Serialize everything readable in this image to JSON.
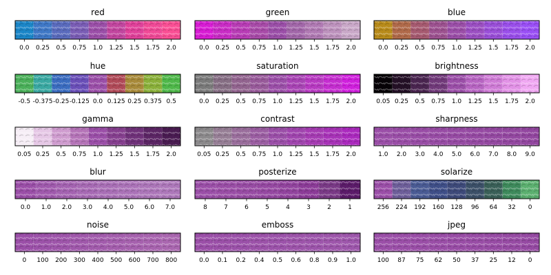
{
  "chart_data": [
    {
      "type": "heatmap",
      "title": "red",
      "tick_labels": [
        "0.0",
        "0.25",
        "0.5",
        "0.75",
        "1.0",
        "1.25",
        "1.5",
        "1.75",
        "2.0"
      ],
      "tile_colors": [
        "#1b86c8",
        "#3f78c6",
        "#5a6bbd",
        "#7a5db5",
        "#9b4fa8",
        "#c2469f",
        "#e0419a",
        "#f04a97",
        "#fa4f94"
      ]
    },
    {
      "type": "heatmap",
      "title": "green",
      "tick_labels": [
        "0.0",
        "0.25",
        "0.5",
        "0.75",
        "1.0",
        "1.25",
        "1.5",
        "1.75",
        "2.0"
      ],
      "tile_colors": [
        "#d81cd4",
        "#c92cc5",
        "#b83cb5",
        "#a84ba8",
        "#9b4fa8",
        "#a267a9",
        "#b07ab3",
        "#bd92bd",
        "#c9a8c8"
      ]
    },
    {
      "type": "heatmap",
      "title": "blue",
      "tick_labels": [
        "0.0",
        "0.25",
        "0.5",
        "0.75",
        "1.0",
        "1.25",
        "1.5",
        "1.75",
        "2.0"
      ],
      "tile_colors": [
        "#b88b1a",
        "#b06a4a",
        "#a65a70",
        "#9d5290",
        "#9b4fa8",
        "#9b4fc2",
        "#9a4fd8",
        "#9a4fea",
        "#9a4ff5"
      ]
    },
    {
      "type": "heatmap",
      "title": "hue",
      "tick_labels": [
        "-0.5",
        "-0.375",
        "-0.25",
        "-0.125",
        "0.0",
        "0.125",
        "0.25",
        "0.375",
        "0.5"
      ],
      "tile_colors": [
        "#4bb05a",
        "#3aa8a2",
        "#3b6cc0",
        "#6a4fb8",
        "#9b4fa8",
        "#b04a58",
        "#a88a3a",
        "#8ab03a",
        "#4fb84a"
      ]
    },
    {
      "type": "heatmap",
      "title": "saturation",
      "tick_labels": [
        "0.0",
        "0.25",
        "0.5",
        "0.75",
        "1.0",
        "1.25",
        "1.5",
        "1.75",
        "2.0"
      ],
      "tile_colors": [
        "#7a7a7a",
        "#866e84",
        "#92648f",
        "#985a9a",
        "#9b4fa8",
        "#a844b4",
        "#b83ac2",
        "#c52ed0",
        "#d020dd"
      ]
    },
    {
      "type": "heatmap",
      "title": "brightness",
      "tick_labels": [
        "0.05",
        "0.25",
        "0.5",
        "0.75",
        "1.0",
        "1.25",
        "1.5",
        "1.75",
        "2.0"
      ],
      "tile_colors": [
        "#070307",
        "#241026",
        "#4a2550",
        "#713a7a",
        "#9b4fa8",
        "#b765c2",
        "#cf7cd6",
        "#e292e6",
        "#f0a8f2"
      ]
    },
    {
      "type": "heatmap",
      "title": "gamma",
      "tick_labels": [
        "0.05",
        "0.25",
        "0.5",
        "0.75",
        "1.0",
        "1.25",
        "1.5",
        "1.75",
        "2.0"
      ],
      "tile_colors": [
        "#f6eef6",
        "#e6c8e6",
        "#cf9ccf",
        "#b574b8",
        "#9b4fa8",
        "#86408f",
        "#70327a",
        "#5c2665",
        "#4a1c52"
      ]
    },
    {
      "type": "heatmap",
      "title": "contrast",
      "tick_labels": [
        "0.05",
        "0.25",
        "0.5",
        "0.75",
        "1.0",
        "1.25",
        "1.5",
        "1.75",
        "2.0"
      ],
      "tile_colors": [
        "#8c8a8c",
        "#977f96",
        "#9a6e9c",
        "#9b5ea2",
        "#9b4fa8",
        "#a045ae",
        "#a63cb3",
        "#a833b8",
        "#ab2abe"
      ]
    },
    {
      "type": "heatmap",
      "title": "sharpness",
      "tick_labels": [
        "1.0",
        "2.0",
        "3.0",
        "4.0",
        "5.0",
        "6.0",
        "7.0",
        "8.0",
        "9.0"
      ],
      "tile_colors": [
        "#9b4fa8",
        "#9a4ea7",
        "#994da6",
        "#984ca5",
        "#974ba4",
        "#964aa3",
        "#9549a2",
        "#9448a1",
        "#9347a0"
      ]
    },
    {
      "type": "heatmap",
      "title": "blur",
      "tick_labels": [
        "0.0",
        "1.0",
        "2.0",
        "3.0",
        "4.0",
        "5.0",
        "6.0",
        "7.0"
      ],
      "tile_colors": [
        "#9b4fa8",
        "#a05aad",
        "#a463b1",
        "#a76ab4",
        "#a96fb6",
        "#ab73b8",
        "#ac76b9",
        "#ad78ba"
      ]
    },
    {
      "type": "heatmap",
      "title": "posterize",
      "tick_labels": [
        "8",
        "7",
        "6",
        "5",
        "4",
        "3",
        "2",
        "1"
      ],
      "tile_colors": [
        "#9b4fa8",
        "#9a4ea6",
        "#984ca4",
        "#9649a2",
        "#92449e",
        "#8c3c98",
        "#7a3a86",
        "#5c1c6a"
      ]
    },
    {
      "type": "heatmap",
      "title": "solarize",
      "tick_labels": [
        "256",
        "224",
        "192",
        "160",
        "128",
        "96",
        "64",
        "32",
        "0"
      ],
      "tile_colors": [
        "#9b4fa8",
        "#6e5f9a",
        "#4a5b94",
        "#3f4f88",
        "#3e4a7a",
        "#3c5068",
        "#3a6058",
        "#3e8a5c",
        "#5cb070"
      ]
    },
    {
      "type": "heatmap",
      "title": "noise",
      "tick_labels": [
        "0",
        "100",
        "200",
        "300",
        "400",
        "500",
        "600",
        "700",
        "800"
      ],
      "tile_colors": [
        "#9b4fa8",
        "#9c52a9",
        "#9e55aa",
        "#a058ab",
        "#a25bac",
        "#a45ead",
        "#a661ae",
        "#a864af",
        "#aa67b0"
      ]
    },
    {
      "type": "heatmap",
      "title": "emboss",
      "tick_labels": [
        "0.0",
        "0.1",
        "0.2",
        "0.4",
        "0.5",
        "0.6",
        "0.8",
        "0.9",
        "1.0"
      ],
      "tile_colors": [
        "#9b4fa8",
        "#9b50a8",
        "#9b51a9",
        "#9c52a9",
        "#9c53aa",
        "#9d54aa",
        "#9d55ab",
        "#9e56ab",
        "#9e57ac"
      ]
    },
    {
      "type": "heatmap",
      "title": "jpeg",
      "tick_labels": [
        "100",
        "87",
        "75",
        "62",
        "50",
        "37",
        "25",
        "12",
        "0"
      ],
      "tile_colors": [
        "#9b4fa8",
        "#9b4fa8",
        "#9a4ea7",
        "#9a4ea7",
        "#994da6",
        "#994da6",
        "#984ca5",
        "#974ba4",
        "#964aa3"
      ]
    }
  ]
}
